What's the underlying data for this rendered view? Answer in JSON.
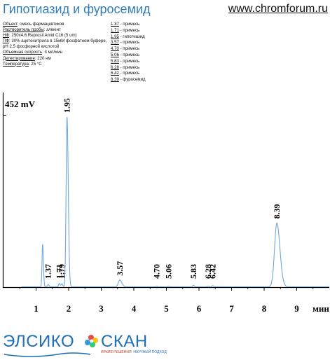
{
  "header": {
    "title": "Гипотиазид и фуросемид",
    "site": "www.chromforum.ru"
  },
  "conditions": [
    {
      "key": "Объект",
      "value": ": смесь фармацевтиков"
    },
    {
      "key": "Растворитель пробы",
      "value": ": элюент"
    },
    {
      "key": "НФ",
      "value": ": 250x4.6 Reprosil Amid C16  (5 um)"
    },
    {
      "key": "ПФ",
      "value": ": 30% ацетонитрила в 15мМ фосфатном буфере, pH 2.5 фосфорной кислотой"
    },
    {
      "key": "Объемная скорость",
      "value": ": 3 мл/мин"
    },
    {
      "key": "Детектирование",
      "value": ": 220 нм"
    },
    {
      "key": "Температура",
      "value": ": 25 °С"
    }
  ],
  "peak_table": [
    {
      "rt": "1.37",
      "name": " - примесь"
    },
    {
      "rt": "1.71",
      "name": " - примесь"
    },
    {
      "rt": "1.95",
      "name": " - гипотиазид"
    },
    {
      "rt": "3.57",
      "name": " - примесь"
    },
    {
      "rt": "4.70",
      "name": " - примесь"
    },
    {
      "rt": "5.06",
      "name": " - примесь"
    },
    {
      "rt": "5.83",
      "name": " - примесь"
    },
    {
      "rt": "6.28",
      "name": " - примесь"
    },
    {
      "rt": "6.42",
      "name": " - примесь"
    },
    {
      "rt": "8.39",
      "name": " - фуросемид"
    }
  ],
  "chart_data": {
    "type": "line",
    "title": "",
    "ylabel": "452 mV",
    "xlabel": "мин",
    "xlim": [
      0,
      10
    ],
    "ylim": [
      0,
      452
    ],
    "x_ticks": [
      "1",
      "2",
      "3",
      "4",
      "5",
      "6",
      "7",
      "8",
      "9"
    ],
    "line_color": "#6fa8dc",
    "peaks": [
      {
        "rt": 1.2,
        "height": 112,
        "label": ""
      },
      {
        "rt": 1.37,
        "height": 6,
        "label": "1.37"
      },
      {
        "rt": 1.71,
        "height": 9,
        "label": "1.71"
      },
      {
        "rt": 1.79,
        "height": 8,
        "label": "1.79"
      },
      {
        "rt": 1.95,
        "height": 447,
        "label": "1.95"
      },
      {
        "rt": 3.57,
        "height": 18,
        "label": "3.57"
      },
      {
        "rt": 4.7,
        "height": 2,
        "label": "4.70"
      },
      {
        "rt": 5.06,
        "height": 2,
        "label": "5.06"
      },
      {
        "rt": 5.83,
        "height": 4,
        "label": "5.83"
      },
      {
        "rt": 6.28,
        "height": 2,
        "label": "6.28"
      },
      {
        "rt": 6.42,
        "height": 3,
        "label": "6.42"
      },
      {
        "rt": 8.39,
        "height": 168,
        "label": "8.39"
      }
    ]
  },
  "logo": {
    "left": "ЭЛСИКО",
    "right": "СКАН",
    "tag_red": "ЯРКИЕ РЕШЕНИЯ",
    "tag_blue": "НАУЧНЫЙ ПОДХОД"
  }
}
